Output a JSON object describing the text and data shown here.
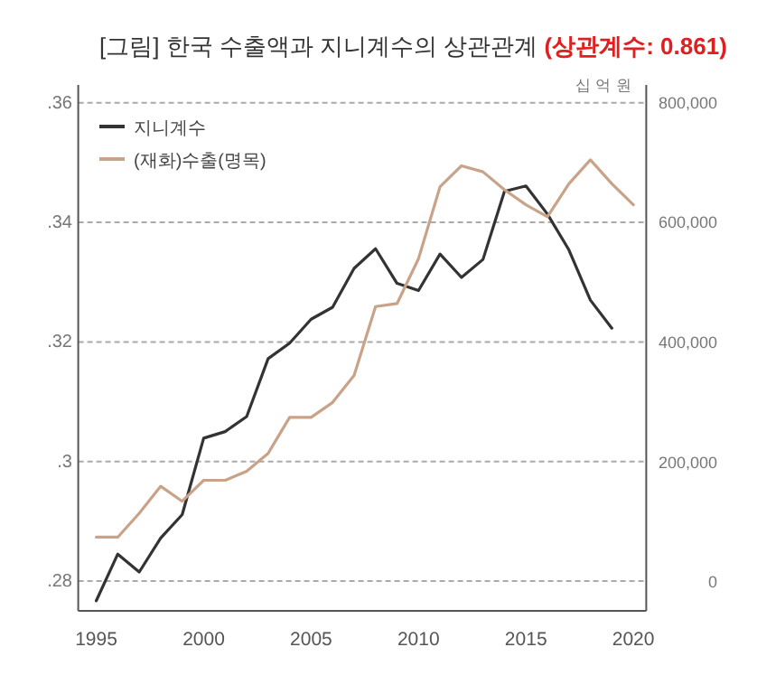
{
  "chart_data": {
    "type": "line",
    "title": "[그림] 한국 수출액과 지니계수의 상관관계",
    "annotations": [
      "(상관계수: 0.861)",
      "십 억 원"
    ],
    "x": [
      1995,
      1996,
      1997,
      1998,
      1999,
      2000,
      2001,
      2002,
      2003,
      2004,
      2005,
      2006,
      2007,
      2008,
      2009,
      2010,
      2011,
      2012,
      2013,
      2014,
      2015,
      2016,
      2017,
      2018,
      2019,
      2020
    ],
    "series": [
      {
        "name": "지니계수",
        "color": "#333333",
        "values": [
          0.2767,
          0.2845,
          0.2815,
          0.2872,
          0.2911,
          0.3039,
          0.305,
          0.3075,
          0.3172,
          0.3198,
          0.3238,
          0.3258,
          0.3323,
          0.3356,
          0.3298,
          0.3286,
          0.3347,
          0.3308,
          0.3338,
          0.3452,
          0.3461,
          0.3414,
          0.3354,
          0.327,
          0.3223,
          null
        ]
      },
      {
        "name": "(재화)수출(명목)",
        "color": "#c9a389",
        "axis": "y2",
        "values": [
          75000,
          75000,
          115000,
          160000,
          135000,
          170000,
          170000,
          185000,
          215000,
          275000,
          275000,
          300000,
          345000,
          460000,
          465000,
          540000,
          660000,
          695000,
          685000,
          655000,
          630000,
          610000,
          665000,
          705000,
          665000,
          630000
        ]
      }
    ],
    "xlim": [
      1994.16,
      2020.6
    ],
    "xticks": [
      1995,
      2000,
      2005,
      2010,
      2015,
      2020
    ],
    "ylim": [
      0.275,
      0.363
    ],
    "yticks": [
      {
        "value": 0.28,
        "label": ".28"
      },
      {
        "value": 0.3,
        "label": ".3"
      },
      {
        "value": 0.32,
        "label": ".32"
      },
      {
        "value": 0.34,
        "label": ".34"
      },
      {
        "value": 0.36,
        "label": ".36"
      }
    ],
    "y2lim": [
      -48000,
      830000
    ],
    "y2ticks": [
      {
        "value": 0,
        "label": "0"
      },
      {
        "value": 200000,
        "label": "200,000"
      },
      {
        "value": 400000,
        "label": "400,000"
      },
      {
        "value": 600000,
        "label": "600,000"
      },
      {
        "value": 800000,
        "label": "800,000"
      }
    ],
    "grid": "y",
    "legend": "top left",
    "marker": "none",
    "line_style": "solid"
  }
}
